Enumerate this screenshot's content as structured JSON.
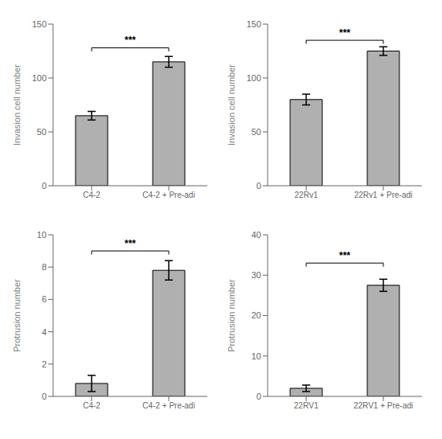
{
  "chart_data": [
    {
      "type": "bar",
      "categories": [
        "C4-2",
        "C4-2 + Pre-adi"
      ],
      "values": [
        65,
        115
      ],
      "errors": [
        4,
        5
      ],
      "color": "#b0b0b0",
      "y_label": "Invasion cell number",
      "ylim": [
        0,
        150
      ],
      "yticks": [
        0,
        50,
        100,
        150
      ],
      "grid": false,
      "annotations": [
        {
          "text": "***",
          "y": 128
        }
      ]
    },
    {
      "type": "bar",
      "categories": [
        "22Rv1",
        "22Rv1 + Pre-adi"
      ],
      "values": [
        80,
        125
      ],
      "errors": [
        5,
        4
      ],
      "color": "#b0b0b0",
      "y_label": "Invasion cell number",
      "ylim": [
        0,
        150
      ],
      "yticks": [
        0,
        50,
        100,
        150
      ],
      "grid": false,
      "annotations": [
        {
          "text": "***",
          "y": 135
        }
      ]
    },
    {
      "type": "bar",
      "categories": [
        "C4-2",
        "C4-2 + Pre-adi"
      ],
      "values": [
        0.8,
        7.8
      ],
      "errors": [
        0.5,
        0.6
      ],
      "color": "#b0b0b0",
      "y_label": "Protrusion number",
      "ylim": [
        0,
        10
      ],
      "yticks": [
        0,
        2,
        4,
        6,
        8,
        10
      ],
      "grid": false,
      "annotations": [
        {
          "text": "***",
          "y": 9.0
        }
      ]
    },
    {
      "type": "bar",
      "categories": [
        "22RV1",
        "22RV1 + Pre-adi"
      ],
      "values": [
        2.0,
        27.5
      ],
      "errors": [
        0.8,
        1.5
      ],
      "color": "#b0b0b0",
      "y_label": "Protrusion number",
      "ylim": [
        0,
        40
      ],
      "yticks": [
        0,
        10,
        20,
        30,
        40
      ],
      "grid": false,
      "annotations": [
        {
          "text": "***",
          "y": 33
        }
      ]
    }
  ]
}
